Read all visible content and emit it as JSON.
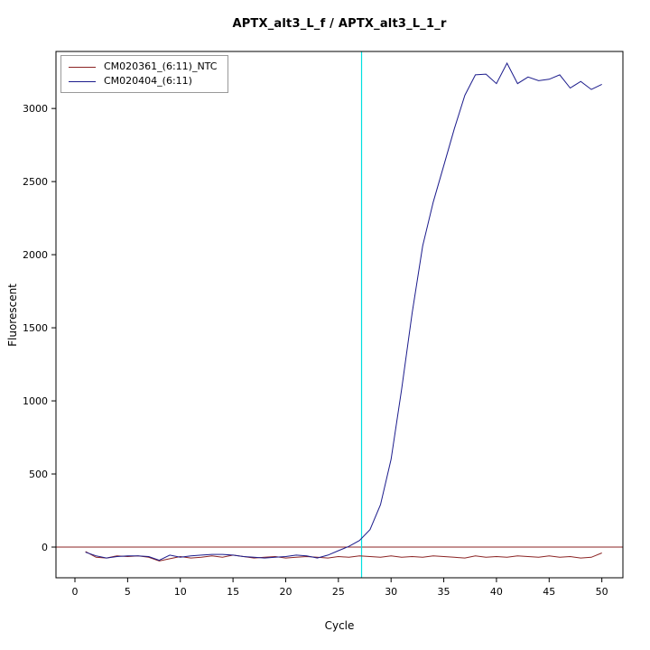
{
  "chart_data": {
    "type": "line",
    "title": "APTX_alt3_L_f / APTX_alt3_L_1_r",
    "xlabel": "Cycle",
    "ylabel": "Fluorescent",
    "xlim": [
      -1.8,
      52
    ],
    "ylim": [
      -210,
      3390
    ],
    "x_ticks": [
      0,
      5,
      10,
      15,
      20,
      25,
      30,
      35,
      40,
      45,
      50
    ],
    "y_ticks": [
      0,
      500,
      1000,
      1500,
      2000,
      2500,
      3000
    ],
    "grid": false,
    "legend_position": "top-left",
    "x": [
      1,
      2,
      3,
      4,
      5,
      6,
      7,
      8,
      9,
      10,
      11,
      12,
      13,
      14,
      15,
      16,
      17,
      18,
      19,
      20,
      21,
      22,
      23,
      24,
      25,
      26,
      27,
      28,
      29,
      30,
      31,
      32,
      33,
      34,
      35,
      36,
      37,
      38,
      39,
      40,
      41,
      42,
      43,
      44,
      45,
      46,
      47,
      48,
      49,
      50
    ],
    "series": [
      {
        "name": "CM020361_(6:11)_NTC",
        "color": "#8b2323",
        "values": [
          -30,
          -70,
          -75,
          -60,
          -65,
          -60,
          -70,
          -95,
          -80,
          -65,
          -75,
          -70,
          -60,
          -70,
          -55,
          -65,
          -75,
          -70,
          -65,
          -75,
          -70,
          -65,
          -70,
          -75,
          -65,
          -70,
          -60,
          -65,
          -70,
          -60,
          -70,
          -65,
          -70,
          -60,
          -65,
          -70,
          -75,
          -60,
          -70,
          -65,
          -70,
          -60,
          -65,
          -70,
          -60,
          -70,
          -65,
          -75,
          -70,
          -40
        ]
      },
      {
        "name": "CM020404_(6:11)",
        "color": "#1c1c8c",
        "values": [
          -35,
          -60,
          -75,
          -65,
          -60,
          -60,
          -65,
          -90,
          -55,
          -70,
          -60,
          -55,
          -50,
          -50,
          -55,
          -65,
          -70,
          -75,
          -70,
          -65,
          -55,
          -60,
          -75,
          -55,
          -25,
          5,
          45,
          120,
          290,
          600,
          1080,
          1600,
          2060,
          2360,
          2610,
          2860,
          3090,
          3230,
          3235,
          3170,
          3310,
          3170,
          3215,
          3190,
          3200,
          3230,
          3140,
          3185,
          3130,
          3165
        ]
      }
    ],
    "threshold_line": {
      "y": 0,
      "color": "#8b2323"
    },
    "vertical_line": {
      "x": 27.2,
      "color": "#00e0e0"
    }
  }
}
